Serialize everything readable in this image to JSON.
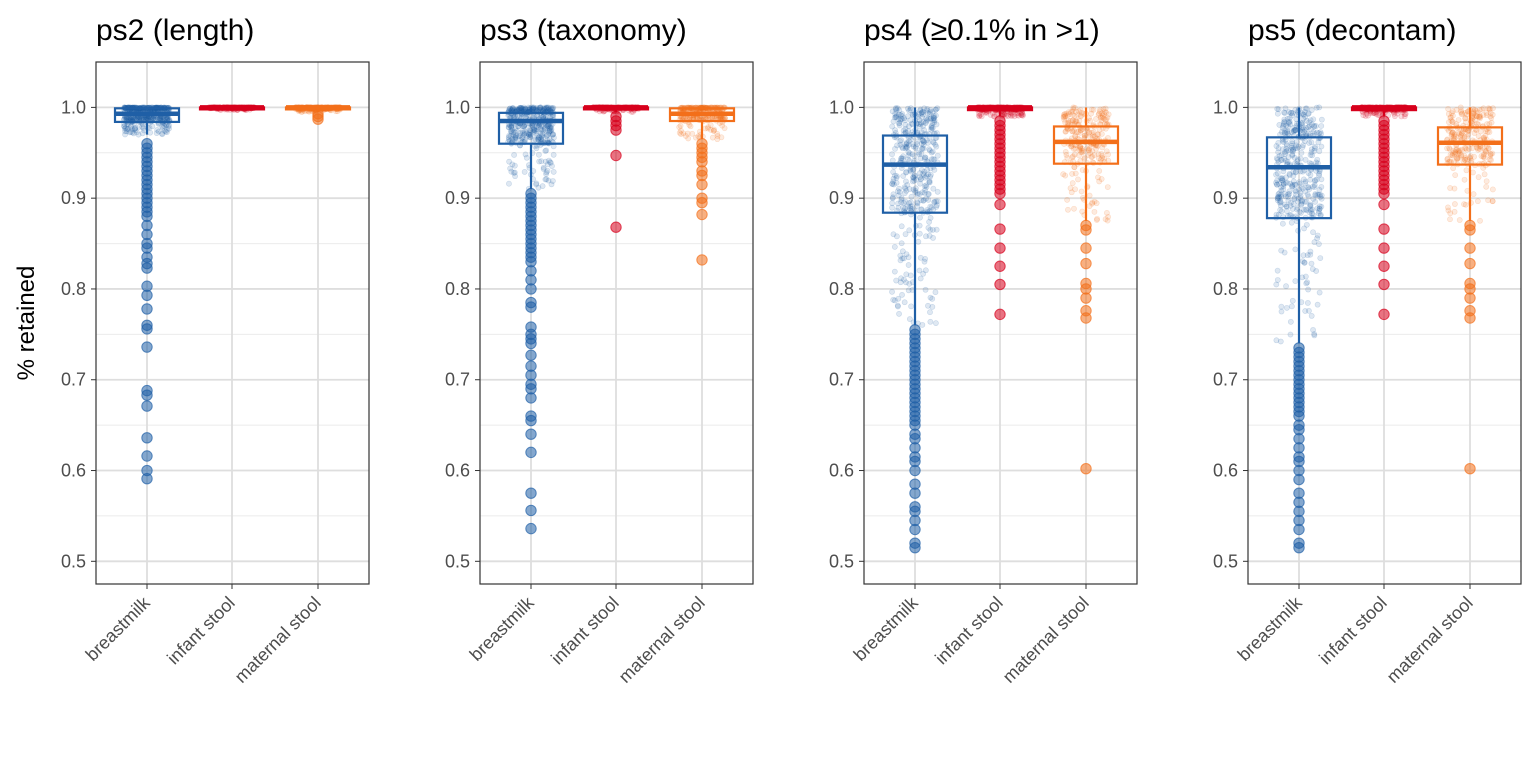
{
  "chart_data": {
    "type": "box",
    "ylabel": "% retained",
    "categories": [
      "breastmilk",
      "infant stool",
      "maternal stool"
    ],
    "colors": {
      "breastmilk": "#1f5fa6",
      "infant stool": "#d7001c",
      "maternal stool": "#f36f1a"
    },
    "ylim": [
      0.475,
      1.05
    ],
    "yticks": [
      "0.5",
      "0.6",
      "0.7",
      "0.8",
      "0.9",
      "1.0"
    ],
    "grid": true,
    "panels": [
      {
        "title": "ps2 (length)",
        "boxes": [
          {
            "category": "breastmilk",
            "q1": 0.984,
            "median": 0.993,
            "q3": 0.999,
            "whisker_low": 0.97,
            "whisker_high": 1.0,
            "outliers": [
              0.96,
              0.955,
              0.95,
              0.945,
              0.94,
              0.935,
              0.93,
              0.925,
              0.92,
              0.915,
              0.91,
              0.905,
              0.9,
              0.895,
              0.89,
              0.885,
              0.88,
              0.87,
              0.86,
              0.85,
              0.845,
              0.835,
              0.828,
              0.823,
              0.803,
              0.793,
              0.778,
              0.76,
              0.756,
              0.736,
              0.688,
              0.683,
              0.671,
              0.636,
              0.616,
              0.6,
              0.591
            ]
          },
          {
            "category": "infant stool",
            "q1": 0.999,
            "median": 1.0,
            "q3": 1.0,
            "whisker_low": 0.997,
            "whisker_high": 1.0,
            "outliers": []
          },
          {
            "category": "maternal stool",
            "q1": 0.998,
            "median": 1.0,
            "q3": 1.0,
            "whisker_low": 0.995,
            "whisker_high": 1.0,
            "outliers": [
              0.993,
              0.99,
              0.987
            ]
          }
        ]
      },
      {
        "title": "ps3 (taxonomy)",
        "boxes": [
          {
            "category": "breastmilk",
            "q1": 0.96,
            "median": 0.985,
            "q3": 0.994,
            "whisker_low": 0.91,
            "whisker_high": 1.0,
            "outliers": [
              0.905,
              0.9,
              0.895,
              0.89,
              0.885,
              0.88,
              0.875,
              0.87,
              0.865,
              0.86,
              0.855,
              0.85,
              0.845,
              0.84,
              0.835,
              0.83,
              0.82,
              0.81,
              0.8,
              0.785,
              0.78,
              0.758,
              0.75,
              0.745,
              0.74,
              0.727,
              0.715,
              0.705,
              0.695,
              0.69,
              0.68,
              0.66,
              0.655,
              0.64,
              0.62,
              0.575,
              0.556,
              0.536
            ]
          },
          {
            "category": "infant stool",
            "q1": 0.999,
            "median": 1.0,
            "q3": 1.0,
            "whisker_low": 0.995,
            "whisker_high": 1.0,
            "outliers": [
              0.99,
              0.985,
              0.98,
              0.975,
              0.947,
              0.868
            ]
          },
          {
            "category": "maternal stool",
            "q1": 0.985,
            "median": 0.993,
            "q3": 0.999,
            "whisker_low": 0.965,
            "whisker_high": 1.0,
            "outliers": [
              0.96,
              0.955,
              0.95,
              0.945,
              0.94,
              0.93,
              0.925,
              0.915,
              0.9,
              0.895,
              0.882,
              0.832
            ]
          }
        ]
      },
      {
        "title": "ps4 (≥0.1% in >1)",
        "boxes": [
          {
            "category": "breastmilk",
            "q1": 0.884,
            "median": 0.937,
            "q3": 0.969,
            "whisker_low": 0.76,
            "whisker_high": 1.0,
            "outliers": [
              0.755,
              0.75,
              0.745,
              0.74,
              0.735,
              0.73,
              0.725,
              0.72,
              0.715,
              0.71,
              0.705,
              0.7,
              0.695,
              0.69,
              0.685,
              0.68,
              0.675,
              0.67,
              0.665,
              0.66,
              0.655,
              0.65,
              0.64,
              0.635,
              0.625,
              0.615,
              0.61,
              0.6,
              0.585,
              0.575,
              0.56,
              0.555,
              0.545,
              0.535,
              0.52,
              0.515
            ]
          },
          {
            "category": "infant stool",
            "q1": 0.997,
            "median": 1.0,
            "q3": 1.0,
            "whisker_low": 0.99,
            "whisker_high": 1.0,
            "outliers": [
              0.985,
              0.98,
              0.975,
              0.97,
              0.965,
              0.96,
              0.955,
              0.95,
              0.945,
              0.94,
              0.935,
              0.93,
              0.925,
              0.92,
              0.915,
              0.91,
              0.905,
              0.893,
              0.866,
              0.845,
              0.825,
              0.805,
              0.772
            ]
          },
          {
            "category": "maternal stool",
            "q1": 0.938,
            "median": 0.962,
            "q3": 0.979,
            "whisker_low": 0.875,
            "whisker_high": 1.0,
            "outliers": [
              0.87,
              0.865,
              0.845,
              0.828,
              0.806,
              0.8,
              0.79,
              0.776,
              0.768,
              0.602
            ]
          }
        ]
      },
      {
        "title": "ps5 (decontam)",
        "boxes": [
          {
            "category": "breastmilk",
            "q1": 0.878,
            "median": 0.934,
            "q3": 0.967,
            "whisker_low": 0.74,
            "whisker_high": 1.0,
            "outliers": [
              0.735,
              0.73,
              0.725,
              0.72,
              0.715,
              0.71,
              0.705,
              0.7,
              0.695,
              0.69,
              0.685,
              0.68,
              0.675,
              0.67,
              0.665,
              0.66,
              0.65,
              0.645,
              0.635,
              0.625,
              0.615,
              0.61,
              0.6,
              0.59,
              0.575,
              0.565,
              0.555,
              0.545,
              0.535,
              0.52,
              0.515
            ]
          },
          {
            "category": "infant stool",
            "q1": 0.997,
            "median": 1.0,
            "q3": 1.0,
            "whisker_low": 0.99,
            "whisker_high": 1.0,
            "outliers": [
              0.985,
              0.98,
              0.975,
              0.97,
              0.965,
              0.96,
              0.955,
              0.95,
              0.945,
              0.94,
              0.935,
              0.93,
              0.925,
              0.92,
              0.915,
              0.91,
              0.905,
              0.893,
              0.866,
              0.845,
              0.825,
              0.805,
              0.772
            ]
          },
          {
            "category": "maternal stool",
            "q1": 0.937,
            "median": 0.961,
            "q3": 0.978,
            "whisker_low": 0.875,
            "whisker_high": 1.0,
            "outliers": [
              0.87,
              0.865,
              0.845,
              0.828,
              0.806,
              0.8,
              0.79,
              0.776,
              0.768,
              0.602
            ]
          }
        ]
      }
    ]
  }
}
